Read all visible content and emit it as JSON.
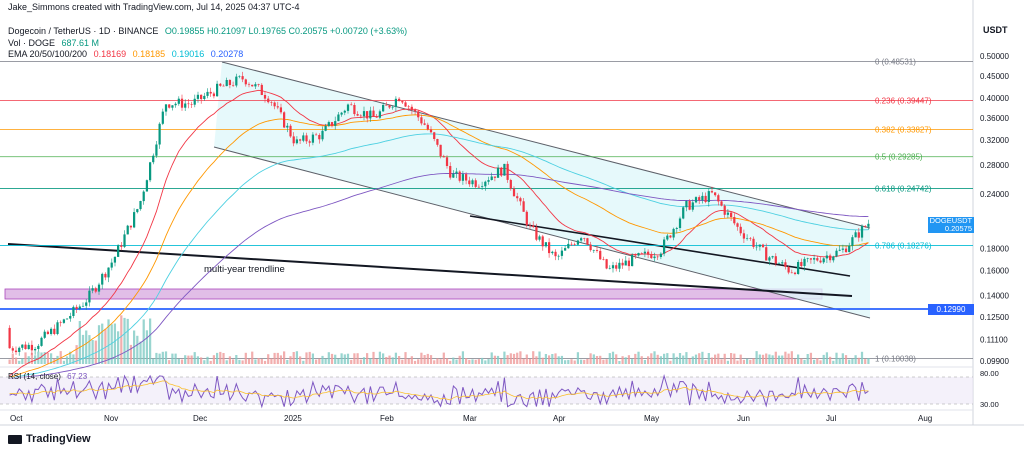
{
  "header": {
    "created_by": "Jake_Simmons created with TradingView.com, Jul 14, 2025 04:37 UTC-4",
    "symbol": "Dogecoin / TetherUS · 1D · BINANCE",
    "ohlc": "O0.19855 H0.21097 L0.19765 C0.20575 +0.00720 (+3.63%)",
    "vol_label": "Vol · DOGE",
    "vol_value": "687.61 M",
    "ema_label": "EMA 20/50/100/200",
    "ema_values": [
      "0.18169",
      "0.18185",
      "0.19016",
      "0.20278"
    ],
    "currency": "USDT"
  },
  "footer": {
    "brand": "TradingView"
  },
  "colors": {
    "ema20": "#f23645",
    "ema50": "#ff9800",
    "ema100": "#4dd0e1",
    "ema200": "#7e57c2",
    "up": "#089981",
    "down": "#f23645",
    "channel_fill": "#e0f7fa",
    "zone": "#e1bee7"
  },
  "chart_data": {
    "type": "candlestick",
    "x_ticks": [
      "Oct",
      "Nov",
      "Dec",
      "2025",
      "Feb",
      "Mar",
      "Apr",
      "May",
      "Jun",
      "Jul",
      "Aug"
    ],
    "y_ticks": [
      "0.50000",
      "0.45000",
      "0.40000",
      "0.36000",
      "0.32000",
      "0.28000",
      "0.24000",
      "0.20575",
      "0.18000",
      "0.16000",
      "0.14000",
      "0.12990",
      "0.12500",
      "0.11100",
      "0.09900"
    ],
    "scale": "log",
    "last_price": {
      "symbol": "DOGEUSDT",
      "value": "0.20575",
      "countdown": "15:22:04"
    },
    "horizontal_level": "0.12990",
    "fib_levels": [
      {
        "ratio": "0",
        "value": "0.48531",
        "label": "0 (0.48531)",
        "color": "#787b86"
      },
      {
        "ratio": "0.236",
        "value": "0.39447",
        "label": "0.236 (0.39447)",
        "color": "#f23645"
      },
      {
        "ratio": "0.382",
        "value": "0.33827",
        "label": "0.382 (0.33827)",
        "color": "#ff9800"
      },
      {
        "ratio": "0.5",
        "value": "0.29285",
        "label": "0.5 (0.29285)",
        "color": "#4caf50"
      },
      {
        "ratio": "0.618",
        "value": "0.24742",
        "label": "0.618 (0.24742)",
        "color": "#089981"
      },
      {
        "ratio": "0.786",
        "value": "0.18276",
        "label": "0.786 (0.18276)",
        "color": "#00bcd4"
      },
      {
        "ratio": "1",
        "value": "0.10038",
        "label": "1 (0.10038)",
        "color": "#787b86"
      }
    ],
    "annotation": "multi-year trendline",
    "ohlc_approx": [
      [
        "Oct",
        0.118,
        0.125,
        0.1,
        0.106
      ],
      [
        "Oct",
        0.106,
        0.112,
        0.102,
        0.108
      ],
      [
        "Oct",
        0.108,
        0.125,
        0.107,
        0.121
      ],
      [
        "Oct",
        0.121,
        0.142,
        0.118,
        0.138
      ],
      [
        "Nov",
        0.138,
        0.175,
        0.132,
        0.17
      ],
      [
        "Nov",
        0.17,
        0.235,
        0.165,
        0.228
      ],
      [
        "Nov",
        0.228,
        0.435,
        0.215,
        0.39
      ],
      [
        "Nov",
        0.39,
        0.42,
        0.365,
        0.388
      ],
      [
        "Nov",
        0.388,
        0.44,
        0.375,
        0.42
      ],
      [
        "Dec",
        0.42,
        0.484,
        0.405,
        0.445
      ],
      [
        "Dec",
        0.445,
        0.45,
        0.39,
        0.4
      ],
      [
        "Dec",
        0.4,
        0.41,
        0.3,
        0.315
      ],
      [
        "Dec",
        0.315,
        0.345,
        0.29,
        0.33
      ],
      [
        "2025",
        0.33,
        0.42,
        0.32,
        0.385
      ],
      [
        "2025",
        0.385,
        0.41,
        0.345,
        0.36
      ],
      [
        "2025",
        0.36,
        0.432,
        0.35,
        0.405
      ],
      [
        "2025",
        0.405,
        0.42,
        0.33,
        0.345
      ],
      [
        "Feb",
        0.345,
        0.35,
        0.23,
        0.265
      ],
      [
        "Feb",
        0.265,
        0.285,
        0.245,
        0.255
      ],
      [
        "Feb",
        0.255,
        0.29,
        0.24,
        0.275
      ],
      [
        "Mar",
        0.275,
        0.28,
        0.18,
        0.2
      ],
      [
        "Mar",
        0.2,
        0.215,
        0.16,
        0.17
      ],
      [
        "Mar",
        0.17,
        0.205,
        0.16,
        0.195
      ],
      [
        "Apr",
        0.195,
        0.2,
        0.13,
        0.16
      ],
      [
        "Apr",
        0.16,
        0.178,
        0.15,
        0.17
      ],
      [
        "May",
        0.17,
        0.18,
        0.165,
        0.178
      ],
      [
        "May",
        0.178,
        0.26,
        0.175,
        0.225
      ],
      [
        "May",
        0.225,
        0.258,
        0.215,
        0.24
      ],
      [
        "Jun",
        0.24,
        0.245,
        0.185,
        0.2
      ],
      [
        "Jun",
        0.2,
        0.21,
        0.168,
        0.175
      ],
      [
        "Jun",
        0.175,
        0.18,
        0.145,
        0.16
      ],
      [
        "Jul",
        0.16,
        0.175,
        0.155,
        0.17
      ],
      [
        "Jul",
        0.17,
        0.185,
        0.165,
        0.178
      ],
      [
        "Jul",
        0.178,
        0.211,
        0.176,
        0.206
      ]
    ],
    "rsi": {
      "label": "RSI (14, close)",
      "value": "67.23",
      "upper": "80.00",
      "lower": "30.00"
    }
  }
}
